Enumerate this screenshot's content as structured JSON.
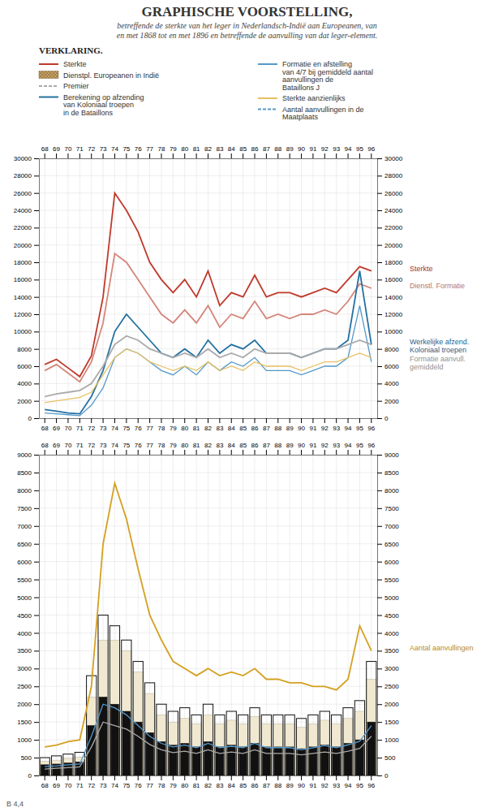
{
  "chart_data": [
    {
      "type": "line",
      "title": "GRAPHISCHE VOORSTELLING,",
      "subtitle": [
        "betreffende de sterkte van het leger in Nederlandsch-Indië aan Europeanen, van",
        "en met 1868 tot en met 1896 en betreffende de aanvulling van dat leger-element."
      ],
      "categories": [
        "68",
        "69",
        "70",
        "71",
        "72",
        "73",
        "74",
        "75",
        "76",
        "77",
        "78",
        "79",
        "80",
        "81",
        "82",
        "83",
        "84",
        "85",
        "86",
        "87",
        "88",
        "89",
        "90",
        "91",
        "92",
        "93",
        "94",
        "95",
        "96"
      ],
      "ylim": [
        0,
        30000
      ],
      "yticks": [
        0,
        2000,
        4000,
        6000,
        8000,
        10000,
        12000,
        14000,
        16000,
        18000,
        20000,
        22000,
        24000,
        26000,
        28000,
        30000
      ],
      "grid": true,
      "series": [
        {
          "color": "#c0392b",
          "label": "Sterkte",
          "values": [
            6200,
            6800,
            5800,
            4800,
            7200,
            14000,
            26000,
            24000,
            21500,
            18000,
            16000,
            14500,
            16000,
            14000,
            17000,
            13000,
            14500,
            14000,
            16500,
            14000,
            14500,
            14500,
            14000,
            14500,
            15000,
            14500,
            16000,
            17500,
            17000
          ]
        },
        {
          "color": "#d4867a",
          "label": "Dienstl. Formatie",
          "values": [
            5500,
            6200,
            5200,
            4200,
            6500,
            11000,
            19000,
            18000,
            16000,
            14000,
            12000,
            11000,
            12500,
            11000,
            13000,
            10500,
            12000,
            11500,
            13500,
            11500,
            12000,
            11500,
            12000,
            12000,
            12500,
            12000,
            13500,
            15500,
            15000
          ]
        },
        {
          "color": "#2471a3",
          "label": "Werkelijke afzend.\nKoloniaal troepen",
          "values": [
            1000,
            800,
            600,
            500,
            2500,
            5500,
            10000,
            12000,
            10500,
            9000,
            7500,
            7000,
            8000,
            7000,
            9000,
            7500,
            8500,
            8000,
            9000,
            7500,
            7500,
            7500,
            7000,
            7500,
            8000,
            8000,
            9000,
            17000,
            8500
          ]
        },
        {
          "color": "#5499c9",
          "values": [
            600,
            500,
            400,
            300,
            1500,
            3500,
            7000,
            8000,
            7500,
            6500,
            5500,
            5000,
            6000,
            5000,
            6500,
            5500,
            6500,
            6000,
            7000,
            5500,
            5500,
            5500,
            5000,
            5500,
            6000,
            6000,
            7000,
            13000,
            6500
          ]
        },
        {
          "color": "#aaaaaa",
          "label": "Formatie aanvull.\ngemiddeld",
          "values": [
            2500,
            2800,
            3000,
            3200,
            4000,
            6000,
            8500,
            9500,
            9000,
            8000,
            7500,
            7000,
            7500,
            7000,
            8000,
            7000,
            7500,
            7000,
            8000,
            7500,
            7500,
            7500,
            7000,
            7500,
            8000,
            8000,
            8500,
            9000,
            8500
          ]
        },
        {
          "color": "#e8c060",
          "values": [
            1800,
            2000,
            2200,
            2400,
            3000,
            5000,
            7000,
            8000,
            7500,
            6500,
            6000,
            5500,
            6000,
            5500,
            6500,
            5500,
            6000,
            5500,
            6500,
            6000,
            6000,
            6000,
            5500,
            6000,
            6500,
            6500,
            7000,
            7500,
            7000
          ]
        }
      ],
      "legend_title": "VERKLARING.",
      "legend_entries": [
        {
          "label": "Sterkte",
          "color": "#c0392b",
          "line_style": "solid"
        },
        {
          "label": "Dienstpl. Europeanen in Indië",
          "color": "#c8a060",
          "type": "hatch"
        },
        {
          "label": "Premier",
          "color": "#aaaaaa",
          "line_style": "dashed"
        },
        {
          "label": "Berekening op afzending\nvan Koloniaal troepen\nin de Bataillons",
          "color": "#2471a3",
          "line_style": "solid"
        },
        {
          "label": "Formatie en afstelling\nvan 4/7 bij gemiddeld aantal\naanvullingen de\nBataillons J",
          "color": "#5499c9",
          "line_style": "solid"
        },
        {
          "label": "Sterkte aanzienlijks",
          "color": "#e8c060",
          "line_style": "solid"
        },
        {
          "label": "Aantal aanvullingen in de\nMaatplaats",
          "color": "#5599cc",
          "line_style": "dashed"
        }
      ],
      "annotations": [
        {
          "text": "B 4,4"
        }
      ]
    },
    {
      "type": "bar",
      "categories": [
        "68",
        "69",
        "70",
        "71",
        "72",
        "73",
        "74",
        "75",
        "76",
        "77",
        "78",
        "79",
        "80",
        "81",
        "82",
        "83",
        "84",
        "85",
        "86",
        "87",
        "88",
        "89",
        "90",
        "91",
        "92",
        "93",
        "94",
        "95",
        "96"
      ],
      "ylim": [
        0,
        9000
      ],
      "yticks": [
        0,
        500,
        1000,
        1500,
        2000,
        2500,
        3000,
        3500,
        4000,
        4500,
        5000,
        5500,
        6000,
        6500,
        7000,
        7500,
        8000,
        8500,
        9000
      ],
      "grid": true,
      "series": [
        {
          "type": "bar",
          "color": "#f0e8d0",
          "values": [
            400,
            430,
            480,
            520,
            2200,
            3800,
            3800,
            3500,
            2900,
            2300,
            1700,
            1500,
            1600,
            1450,
            1700,
            1450,
            1550,
            1450,
            1650,
            1450,
            1450,
            1450,
            1350,
            1450,
            1550,
            1450,
            1600,
            1800,
            2700
          ]
        },
        {
          "type": "bar",
          "color": "#e8d8b0",
          "values": [
            200,
            220,
            250,
            280,
            1000,
            1800,
            1800,
            1700,
            1400,
            1100,
            800,
            700,
            750,
            680,
            800,
            680,
            720,
            680,
            800,
            680,
            680,
            680,
            640,
            680,
            720,
            680,
            760,
            860,
            1300
          ]
        },
        {
          "type": "bar",
          "color": "#111111",
          "line_style": "outline",
          "values": [
            500,
            550,
            600,
            650,
            2800,
            4500,
            4200,
            3800,
            3200,
            2600,
            2000,
            1800,
            1900,
            1700,
            2000,
            1700,
            1800,
            1700,
            1900,
            1700,
            1700,
            1700,
            1600,
            1700,
            1800,
            1700,
            1900,
            2100,
            3200
          ]
        },
        {
          "type": "bar",
          "color": "#111111",
          "values": [
            300,
            320,
            350,
            380,
            1400,
            2200,
            2000,
            1800,
            1500,
            1200,
            950,
            850,
            900,
            800,
            950,
            800,
            850,
            800,
            900,
            800,
            800,
            800,
            750,
            800,
            850,
            800,
            900,
            1000,
            1500
          ]
        },
        {
          "type": "line",
          "color": "#d4a020",
          "label": "Aantal aanvullingen",
          "values": [
            800,
            850,
            950,
            1000,
            2500,
            6500,
            8200,
            7200,
            5800,
            4500,
            3800,
            3200,
            3000,
            2800,
            3000,
            2800,
            2900,
            2800,
            3000,
            2700,
            2700,
            2600,
            2600,
            2500,
            2500,
            2400,
            2700,
            4200,
            3500
          ]
        },
        {
          "type": "line",
          "color": "#5599cc",
          "values": [
            250,
            270,
            300,
            320,
            1100,
            2000,
            1900,
            1700,
            1400,
            1100,
            900,
            800,
            850,
            780,
            900,
            780,
            820,
            780,
            900,
            780,
            780,
            780,
            720,
            780,
            840,
            780,
            860,
            960,
            1400
          ]
        },
        {
          "type": "line",
          "color": "#aaaaaa",
          "values": [
            180,
            200,
            220,
            240,
            800,
            1500,
            1400,
            1300,
            1100,
            870,
            720,
            640,
            680,
            620,
            720,
            620,
            660,
            620,
            720,
            620,
            620,
            620,
            580,
            620,
            660,
            620,
            680,
            760,
            1100
          ]
        }
      ]
    }
  ]
}
